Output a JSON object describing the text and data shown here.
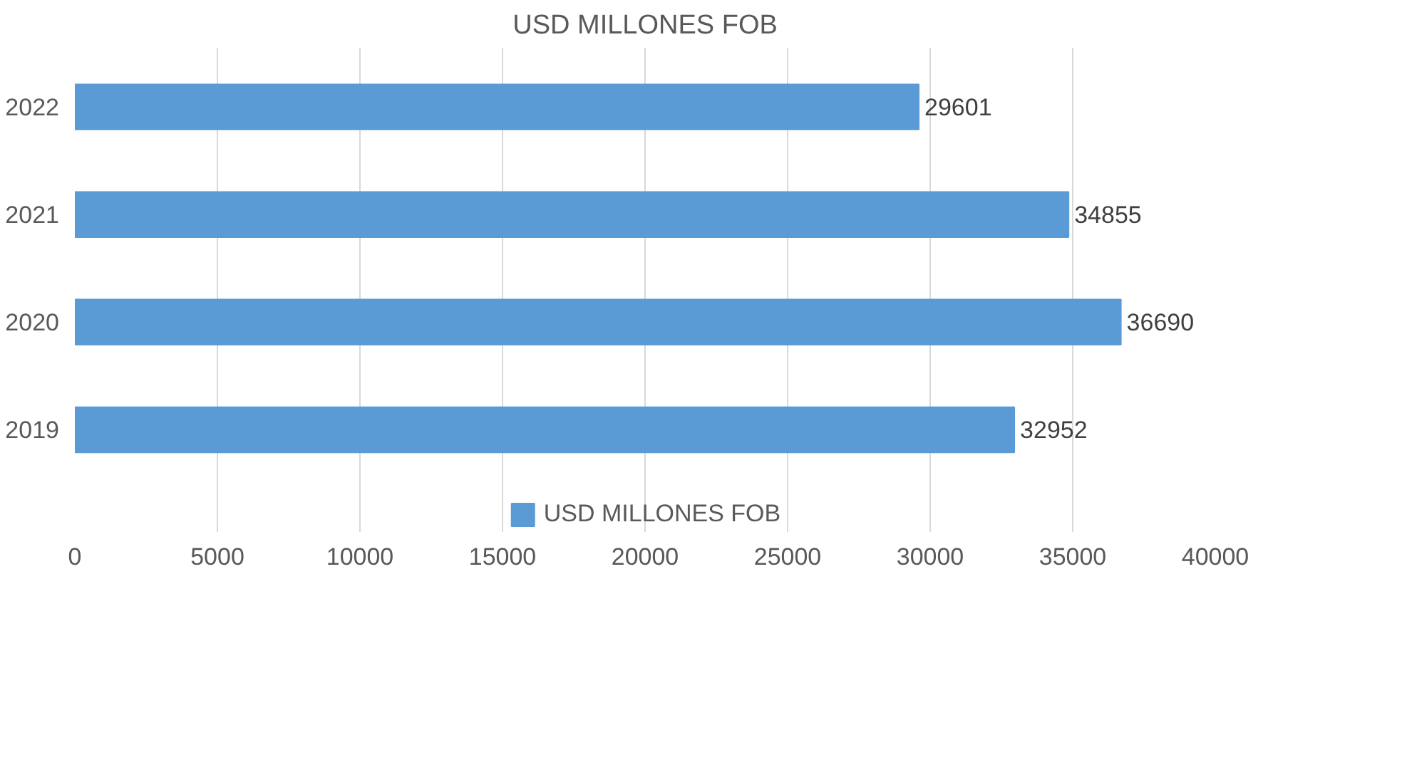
{
  "chart_data": {
    "type": "bar",
    "orientation": "horizontal",
    "title": "USD MILLONES FOB",
    "categories": [
      "2022",
      "2021",
      "2020",
      "2019"
    ],
    "series": [
      {
        "name": "USD MILLONES FOB",
        "color": "#5b9bd5",
        "values": [
          29601,
          34855,
          36690,
          32952
        ]
      }
    ],
    "xlim": [
      0,
      40000
    ],
    "xticks": [
      0,
      5000,
      10000,
      15000,
      20000,
      25000,
      30000,
      35000,
      40000
    ],
    "grid": "x",
    "legend": "bottom",
    "data_labels": true
  }
}
